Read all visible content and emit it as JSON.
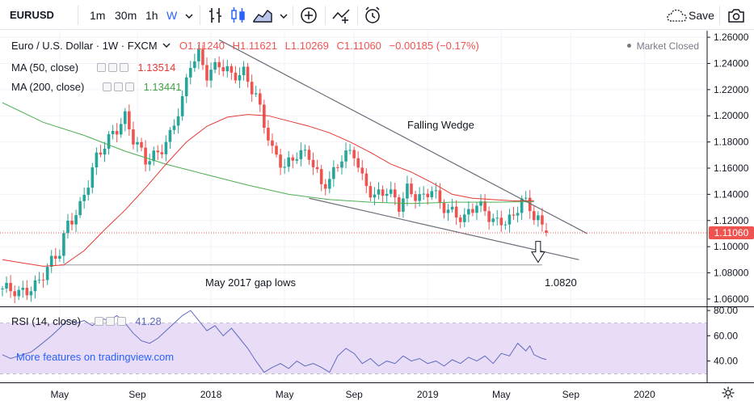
{
  "toolbar": {
    "symbol": "EURUSD",
    "intervals": [
      "1m",
      "30m",
      "1h",
      "W"
    ],
    "active_interval": "W",
    "save_label": "Save"
  },
  "legend": {
    "title": "Euro / U.S. Dollar · 1W · FXCM",
    "open": "O1.11240",
    "high": "H1.11621",
    "low": "L1.10269",
    "close": "C1.11060",
    "change": "−0.00185 (−0.17%)",
    "ma50_label": "MA (50, close)",
    "ma50_value": "1.13514",
    "ma200_label": "MA (200, close)",
    "ma200_value": "1.13441",
    "market_status": "Market Closed"
  },
  "annotations": {
    "pattern": "Falling Wedge",
    "gap_label": "May 2017 gap lows",
    "target_label": "1.0820"
  },
  "rsi": {
    "label": "RSI (14, close)",
    "value": "41.28",
    "promo": "More features on tradingview.com"
  },
  "colors": {
    "up": "#26a69a",
    "down": "#ef5350",
    "ma50": "#e53935",
    "ma200": "#4caf50",
    "rsi_line": "#5e6bbd",
    "rsi_band": "#e9dcf7",
    "last_price": "#ef5350"
  },
  "chart_data": [
    {
      "type": "candlestick",
      "title": "Euro / U.S. Dollar · 1W · FXCM",
      "x_ticks": [
        "May",
        "Sep",
        "2018",
        "May",
        "Sep",
        "2019",
        "May",
        "Sep",
        "2020"
      ],
      "y_ticks": [
        1.06,
        1.08,
        1.1,
        1.12,
        1.14,
        1.16,
        1.18,
        1.2,
        1.22,
        1.24,
        1.26
      ],
      "ylim": [
        1.055,
        1.265
      ],
      "x_unit": "weeks since the first visible candle (week 0 ≈ Feb 2017)",
      "last_price": 1.1106,
      "anchors": [
        [
          0,
          1.068
        ],
        [
          4,
          1.063
        ],
        [
          8,
          1.072
        ],
        [
          11,
          1.083
        ],
        [
          14,
          1.095
        ],
        [
          16,
          1.118
        ],
        [
          19,
          1.132
        ],
        [
          23,
          1.166
        ],
        [
          27,
          1.188
        ],
        [
          30,
          1.2
        ],
        [
          32,
          1.181
        ],
        [
          35,
          1.165
        ],
        [
          38,
          1.173
        ],
        [
          41,
          1.185
        ],
        [
          44,
          1.21
        ],
        [
          46,
          1.24
        ],
        [
          48,
          1.248
        ],
        [
          50,
          1.233
        ],
        [
          53,
          1.238
        ],
        [
          56,
          1.23
        ],
        [
          59,
          1.235
        ],
        [
          62,
          1.215
        ],
        [
          64,
          1.192
        ],
        [
          66,
          1.172
        ],
        [
          69,
          1.163
        ],
        [
          72,
          1.171
        ],
        [
          75,
          1.168
        ],
        [
          78,
          1.148
        ],
        [
          80,
          1.153
        ],
        [
          83,
          1.168
        ],
        [
          86,
          1.17
        ],
        [
          88,
          1.152
        ],
        [
          91,
          1.14
        ],
        [
          94,
          1.142
        ],
        [
          97,
          1.13
        ],
        [
          99,
          1.145
        ],
        [
          103,
          1.137
        ],
        [
          105,
          1.143
        ],
        [
          107,
          1.131
        ],
        [
          110,
          1.128
        ],
        [
          113,
          1.122
        ],
        [
          116,
          1.131
        ],
        [
          119,
          1.124
        ],
        [
          121,
          1.12
        ],
        [
          123,
          1.121
        ],
        [
          125,
          1.12
        ],
        [
          127,
          1.136
        ],
        [
          129,
          1.128
        ],
        [
          131,
          1.124
        ],
        [
          132,
          1.115
        ],
        [
          133,
          1.1106
        ]
      ],
      "ma50": [
        [
          0,
          1.09
        ],
        [
          10,
          1.085
        ],
        [
          15,
          1.086
        ],
        [
          20,
          1.097
        ],
        [
          25,
          1.113
        ],
        [
          30,
          1.128
        ],
        [
          35,
          1.145
        ],
        [
          40,
          1.163
        ],
        [
          45,
          1.18
        ],
        [
          50,
          1.192
        ],
        [
          55,
          1.199
        ],
        [
          60,
          1.201
        ],
        [
          65,
          1.2
        ],
        [
          70,
          1.196
        ],
        [
          75,
          1.192
        ],
        [
          80,
          1.187
        ],
        [
          85,
          1.18
        ],
        [
          90,
          1.172
        ],
        [
          95,
          1.163
        ],
        [
          100,
          1.157
        ],
        [
          105,
          1.149
        ],
        [
          110,
          1.14
        ],
        [
          115,
          1.137
        ],
        [
          120,
          1.136
        ],
        [
          125,
          1.135
        ],
        [
          130,
          1.1351
        ]
      ],
      "ma200": [
        [
          0,
          1.21
        ],
        [
          10,
          1.195
        ],
        [
          20,
          1.185
        ],
        [
          30,
          1.173
        ],
        [
          40,
          1.163
        ],
        [
          50,
          1.155
        ],
        [
          60,
          1.147
        ],
        [
          70,
          1.14
        ],
        [
          80,
          1.136
        ],
        [
          90,
          1.134
        ],
        [
          100,
          1.133
        ],
        [
          110,
          1.134
        ],
        [
          120,
          1.134
        ],
        [
          130,
          1.1344
        ]
      ],
      "trendlines": [
        {
          "from": [
            53,
            1.258
          ],
          "to": [
            143,
            1.11
          ]
        },
        {
          "from": [
            75,
            1.137
          ],
          "to": [
            141,
            1.09
          ]
        }
      ],
      "gap_line": {
        "from": [
          14,
          1.086
        ],
        "to": [
          132,
          1.086
        ]
      },
      "target_arrow": {
        "x": 131,
        "from": 1.104,
        "to": 1.088
      }
    },
    {
      "type": "line",
      "title": "RSI (14, close)",
      "y_ticks": [
        40,
        60,
        80
      ],
      "ylim": [
        25,
        82
      ],
      "band": [
        30,
        70
      ],
      "values": [
        [
          0,
          45
        ],
        [
          2,
          42
        ],
        [
          4,
          44
        ],
        [
          7,
          47
        ],
        [
          9,
          52
        ],
        [
          12,
          60
        ],
        [
          14,
          66
        ],
        [
          16,
          73
        ],
        [
          18,
          70
        ],
        [
          20,
          72
        ],
        [
          22,
          68
        ],
        [
          24,
          74
        ],
        [
          26,
          72
        ],
        [
          28,
          76
        ],
        [
          30,
          70
        ],
        [
          32,
          62
        ],
        [
          34,
          56
        ],
        [
          36,
          54
        ],
        [
          38,
          58
        ],
        [
          40,
          64
        ],
        [
          42,
          70
        ],
        [
          44,
          76
        ],
        [
          46,
          80
        ],
        [
          48,
          72
        ],
        [
          50,
          64
        ],
        [
          52,
          68
        ],
        [
          54,
          60
        ],
        [
          56,
          66
        ],
        [
          58,
          58
        ],
        [
          60,
          50
        ],
        [
          62,
          40
        ],
        [
          64,
          31
        ],
        [
          66,
          35
        ],
        [
          68,
          38
        ],
        [
          70,
          34
        ],
        [
          72,
          40
        ],
        [
          74,
          36
        ],
        [
          76,
          38
        ],
        [
          78,
          35
        ],
        [
          80,
          31
        ],
        [
          82,
          44
        ],
        [
          84,
          50
        ],
        [
          86,
          46
        ],
        [
          88,
          38
        ],
        [
          90,
          42
        ],
        [
          92,
          36
        ],
        [
          94,
          40
        ],
        [
          96,
          38
        ],
        [
          98,
          44
        ],
        [
          100,
          40
        ],
        [
          102,
          42
        ],
        [
          104,
          38
        ],
        [
          106,
          40
        ],
        [
          108,
          36
        ],
        [
          110,
          41
        ],
        [
          112,
          38
        ],
        [
          114,
          43
        ],
        [
          116,
          40
        ],
        [
          118,
          44
        ],
        [
          120,
          38
        ],
        [
          122,
          46
        ],
        [
          124,
          44
        ],
        [
          126,
          54
        ],
        [
          128,
          48
        ],
        [
          129,
          52
        ],
        [
          130,
          45
        ],
        [
          132,
          42
        ],
        [
          133,
          41.28
        ]
      ]
    }
  ]
}
